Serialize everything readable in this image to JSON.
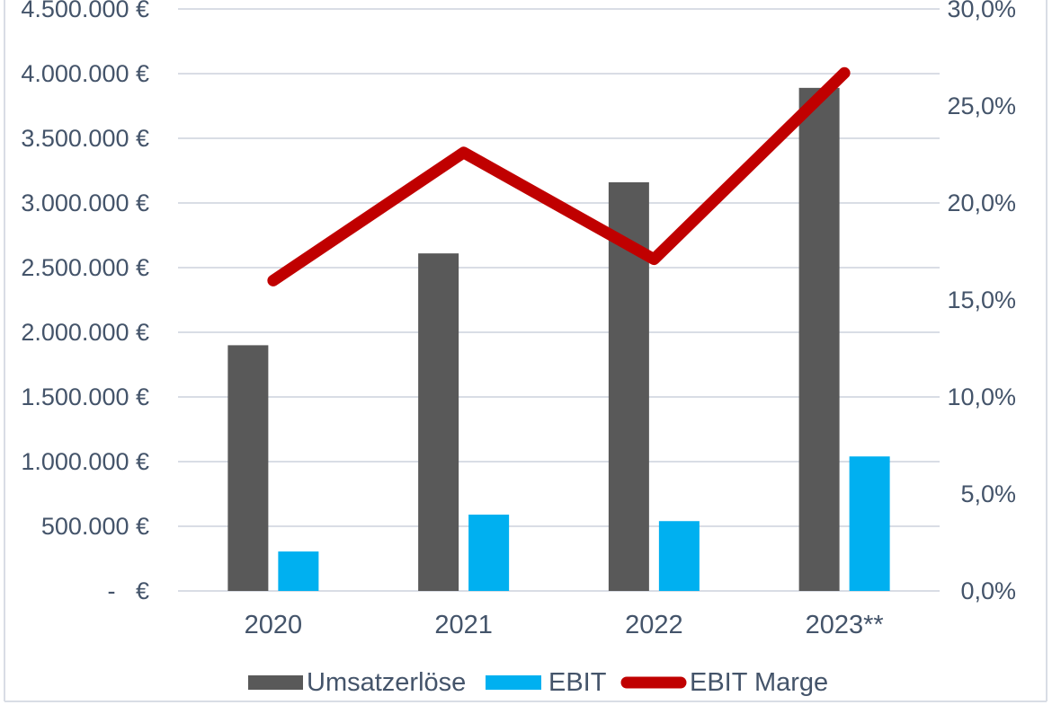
{
  "chart_data": {
    "type": "bar",
    "subtype": "combo-bar-line",
    "title": "",
    "categories": [
      "2020",
      "2021",
      "2022",
      "2023**"
    ],
    "series": [
      {
        "name": "Umsatzerlöse",
        "type": "bar",
        "axis": "left",
        "color": "#595959",
        "values": [
          1900000,
          2610000,
          3160000,
          3890000
        ]
      },
      {
        "name": "EBIT",
        "type": "bar",
        "axis": "left",
        "color": "#00B0F0",
        "values": [
          305000,
          590000,
          540000,
          1040000
        ]
      },
      {
        "name": "EBIT Marge",
        "type": "line",
        "axis": "right",
        "color": "#C00000",
        "values_percent": [
          16.0,
          22.6,
          17.1,
          26.7
        ]
      }
    ],
    "left_axis": {
      "min": 0,
      "max": 4500000,
      "step": 500000,
      "unit": "€",
      "ticks": [
        "4.500.000 €",
        "4.000.000 €",
        "3.500.000 €",
        "3.000.000 €",
        "2.500.000 €",
        "2.000.000 €",
        "1.500.000 €",
        "1.000.000 €",
        "500.000 €",
        "-   €"
      ]
    },
    "right_axis": {
      "min": 0,
      "max": 30,
      "step": 5,
      "unit": "%",
      "ticks": [
        "30,0%",
        "25,0%",
        "20,0%",
        "15,0%",
        "10,0%",
        "5,0%",
        "0,0%"
      ]
    },
    "legend": {
      "position": "bottom",
      "entries": [
        "Umsatzerlöse",
        "EBIT",
        "EBIT Marge"
      ]
    },
    "grid": true
  },
  "colors": {
    "background": "#FFFFFF",
    "axis_text": "#44546A",
    "gridline": "#D9DDE5",
    "border": "#D9DDE5",
    "bar_umsatz": "#595959",
    "bar_ebit": "#00B0F0",
    "line_marge": "#C00000"
  }
}
